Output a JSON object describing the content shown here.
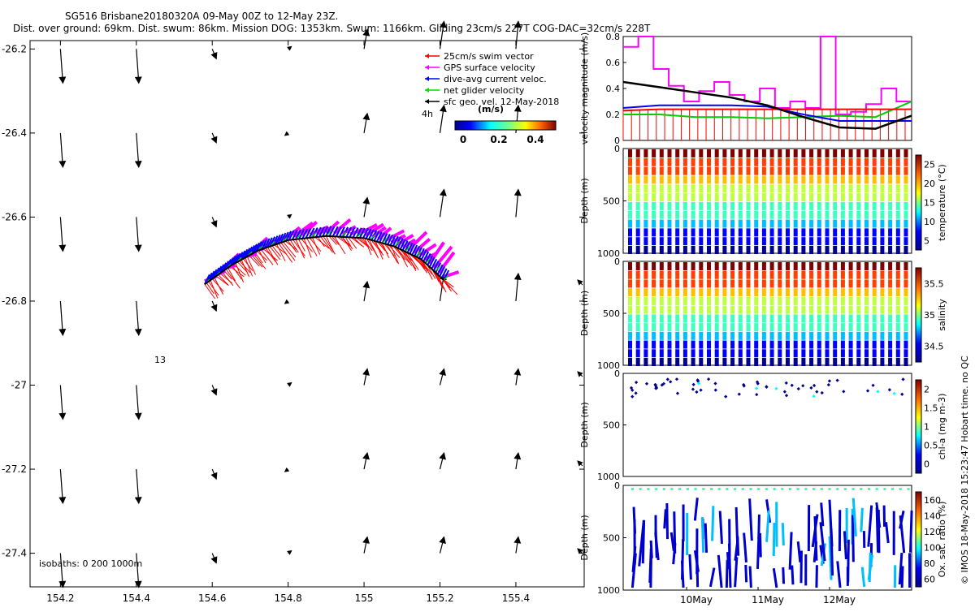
{
  "header": {
    "title": "SG516 Brisbane20180320A 09-May 00Z to 12-May 23Z.",
    "subtitle": "Dist. over ground: 69km. Dist. swum: 86km. Mission DOG: 1353km. Swum: 1166km. Gliding 23cm/s 227T COG-DAC=32cm/s 228T"
  },
  "credit": "© IMOS 18-May-2018 15:23:47 Hobart time. no QC",
  "map": {
    "xlim": [
      154.12,
      155.58
    ],
    "ylim": [
      -27.48,
      -26.18
    ],
    "xticks": [
      154.2,
      154.4,
      154.6,
      154.8,
      155,
      155.2,
      155.4
    ],
    "xtick_labels": [
      "154.2",
      "154.4",
      "154.6",
      "154.8",
      "155",
      "155.2",
      "155.4"
    ],
    "yticks": [
      -26.2,
      -26.4,
      -26.6,
      -26.8,
      -27,
      -27.2,
      -27.4
    ],
    "ytick_labels": [
      "-26.2",
      "-26.4",
      "-26.6",
      "-26.8",
      "-27",
      "-27.2",
      "-27.4"
    ],
    "legend": [
      {
        "label": "25cm/s swim vector",
        "color": "#ff0000"
      },
      {
        "label": "GPS surface velocity",
        "color": "#ff00ff"
      },
      {
        "label": "dive-avg current veloc.",
        "color": "#0000ff"
      },
      {
        "label": "net glider velocity",
        "color": "#00dd00"
      },
      {
        "label": "sfc geo. vel. 12-May-2018",
        "color": "#000000"
      }
    ],
    "legend_label_4h": "4h",
    "colorbar_title": "(m/s)",
    "colorbar_ticks": [
      "0",
      "0.2",
      "0.4"
    ],
    "annotation_13": "13",
    "isobaths_label": "isobaths: 0   200  1000m",
    "track_points": [
      [
        154.58,
        -26.76
      ],
      [
        154.65,
        -26.715
      ],
      [
        154.72,
        -26.68
      ],
      [
        154.8,
        -26.655
      ],
      [
        154.9,
        -26.645
      ],
      [
        155.0,
        -26.65
      ],
      [
        155.08,
        -26.67
      ],
      [
        155.15,
        -26.7
      ],
      [
        155.21,
        -26.75
      ]
    ]
  },
  "panels": {
    "velocity": {
      "ylabel": "velocity magnitude (m/s)",
      "yticks": [
        "0",
        "0.2",
        "0.4",
        "0.6",
        "0.8"
      ]
    },
    "temperature": {
      "ylabel": "Depth (m)",
      "yticks": [
        "0",
        "500",
        "1000"
      ],
      "cbar_label": "temperature (°C)",
      "cbar_ticks": [
        "5",
        "10",
        "15",
        "20",
        "25"
      ]
    },
    "salinity": {
      "ylabel": "Depth (m)",
      "yticks": [
        "0",
        "500",
        "1000"
      ],
      "cbar_label": "salinity",
      "cbar_ticks": [
        "34.5",
        "35",
        "35.5"
      ]
    },
    "chla": {
      "ylabel": "Depth (m)",
      "yticks": [
        "0",
        "500",
        "1000"
      ],
      "cbar_label": "chl-a (mg m-3)",
      "cbar_ticks": [
        "0",
        "0.5",
        "1",
        "1.5",
        "2"
      ]
    },
    "oxygen": {
      "ylabel": "Depth (m)",
      "yticks": [
        "0",
        "500",
        "1000"
      ],
      "cbar_label": "Ox. sat. ratio (%)",
      "cbar_ticks": [
        "60",
        "80",
        "100",
        "120",
        "140",
        "160"
      ]
    },
    "date_ticks": [
      "10May",
      "11May",
      "12May"
    ]
  },
  "chart_data": [
    {
      "type": "scatter",
      "title": "SG516 Brisbane20180320A 09-May 00Z to 12-May 23Z.",
      "xlabel": "",
      "ylabel": "",
      "xlim": [
        154.12,
        155.58
      ],
      "ylim": [
        -27.48,
        -26.18
      ],
      "series": [
        {
          "name": "sfc geo. vel. 12-May-2018",
          "x": [
            154.2,
            154.4,
            154.6,
            154.8,
            155,
            155.2,
            155.4
          ],
          "y": [
            -26.2,
            -26.4,
            -26.6,
            -26.8,
            -27,
            -27.2,
            -27.4
          ]
        }
      ]
    },
    {
      "type": "line",
      "ylabel": "velocity magnitude (m/s)",
      "ylim": [
        0,
        0.8
      ],
      "x_days": [
        0,
        0.5,
        1,
        1.5,
        2,
        2.5,
        3,
        3.5,
        4
      ],
      "series": [
        {
          "name": "net glider velocity",
          "values": [
            0.2,
            0.2,
            0.18,
            0.18,
            0.17,
            0.18,
            0.19,
            0.18,
            0.3
          ]
        },
        {
          "name": "dive-avg current veloc.",
          "values": [
            0.25,
            0.27,
            0.27,
            0.27,
            0.26,
            0.2,
            0.15,
            0.15,
            0.15
          ]
        },
        {
          "name": "25cm/s swim vector",
          "values": [
            0.23,
            0.24,
            0.24,
            0.24,
            0.24,
            0.24,
            0.24,
            0.24,
            0.24
          ]
        },
        {
          "name": "sfc geo. vel. 12-May-2018",
          "values": [
            0.45,
            0.41,
            0.37,
            0.33,
            0.27,
            0.18,
            0.1,
            0.09,
            0.19
          ]
        }
      ]
    }
  ]
}
